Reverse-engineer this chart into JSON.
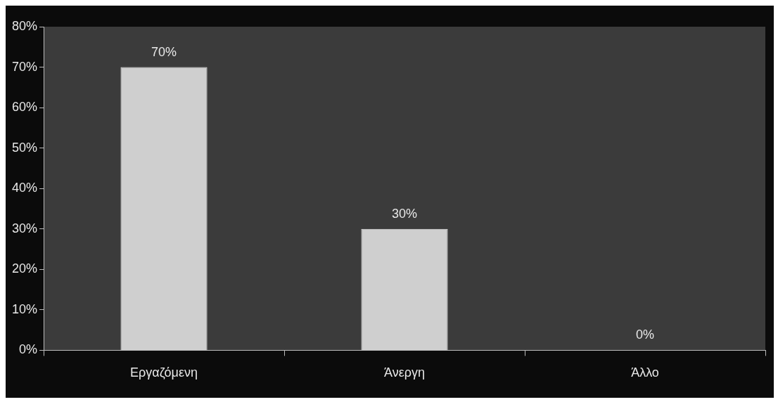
{
  "chart_data": {
    "type": "bar",
    "categories": [
      "Εργαζόμενη",
      "Άνεργη",
      "Άλλο"
    ],
    "values": [
      70,
      30,
      0
    ],
    "value_labels": [
      "70%",
      "30%",
      "0%"
    ],
    "color": "#cfcfcf",
    "ylim": [
      0,
      80
    ],
    "yticks": [
      {
        "value": 0,
        "label": "0%"
      },
      {
        "value": 10,
        "label": "10%"
      },
      {
        "value": 20,
        "label": "20%"
      },
      {
        "value": 30,
        "label": "30%"
      },
      {
        "value": 40,
        "label": "40%"
      },
      {
        "value": 50,
        "label": "50%"
      },
      {
        "value": 60,
        "label": "60%"
      },
      {
        "value": 70,
        "label": "70%"
      },
      {
        "value": 80,
        "label": "80%"
      }
    ]
  }
}
